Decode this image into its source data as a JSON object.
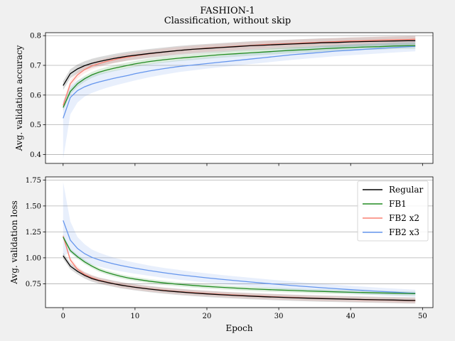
{
  "figure": {
    "title": "FASHION-1",
    "subtitle": "Classification, without skip",
    "background": "#f0f0f0"
  },
  "chart_data": [
    {
      "type": "line",
      "ylabel": "Avg. validation accuracy",
      "xlabel": "",
      "xlim": [
        -2.45,
        51.45
      ],
      "ylim": [
        0.37,
        0.81
      ],
      "xticks": [
        0,
        10,
        20,
        30,
        40,
        50
      ],
      "yticks": [
        0.4,
        0.5,
        0.6,
        0.7,
        0.8
      ],
      "ytick_labels": [
        "0.4",
        "0.5",
        "0.6",
        "0.7",
        "0.8"
      ],
      "grid": "y",
      "x": [
        0,
        1,
        2,
        3,
        4,
        5,
        6,
        7,
        8,
        9,
        10,
        12,
        14,
        16,
        18,
        20,
        22,
        24,
        26,
        28,
        30,
        32,
        34,
        36,
        38,
        40,
        42,
        44,
        46,
        48,
        49
      ],
      "series": [
        {
          "name": "Regular",
          "color": "#000000",
          "values": [
            0.632,
            0.672,
            0.688,
            0.699,
            0.707,
            0.713,
            0.718,
            0.723,
            0.727,
            0.731,
            0.734,
            0.74,
            0.745,
            0.75,
            0.754,
            0.757,
            0.76,
            0.763,
            0.766,
            0.768,
            0.77,
            0.772,
            0.774,
            0.776,
            0.777,
            0.779,
            0.78,
            0.781,
            0.782,
            0.783,
            0.783
          ],
          "band": 0.015
        },
        {
          "name": "FB1",
          "color": "#228b22",
          "values": [
            0.558,
            0.612,
            0.638,
            0.655,
            0.668,
            0.677,
            0.684,
            0.69,
            0.695,
            0.7,
            0.705,
            0.713,
            0.719,
            0.724,
            0.728,
            0.732,
            0.736,
            0.739,
            0.742,
            0.745,
            0.748,
            0.751,
            0.753,
            0.756,
            0.758,
            0.76,
            0.762,
            0.763,
            0.765,
            0.766,
            0.766
          ],
          "band": 0.01
        },
        {
          "name": "FB2 x2",
          "color": "#fa8072",
          "values": [
            0.565,
            0.638,
            0.668,
            0.686,
            0.698,
            0.706,
            0.713,
            0.719,
            0.724,
            0.728,
            0.732,
            0.739,
            0.745,
            0.75,
            0.754,
            0.758,
            0.761,
            0.764,
            0.767,
            0.77,
            0.772,
            0.774,
            0.776,
            0.778,
            0.78,
            0.782,
            0.783,
            0.785,
            0.786,
            0.787,
            0.788
          ],
          "band": 0.012
        },
        {
          "name": "FB2 x3",
          "color": "#6495ed",
          "values": [
            0.522,
            0.592,
            0.615,
            0.628,
            0.637,
            0.644,
            0.65,
            0.656,
            0.661,
            0.666,
            0.672,
            0.681,
            0.689,
            0.696,
            0.701,
            0.706,
            0.711,
            0.716,
            0.721,
            0.726,
            0.731,
            0.736,
            0.74,
            0.744,
            0.748,
            0.751,
            0.754,
            0.757,
            0.76,
            0.763,
            0.764
          ],
          "band_lower": [
            0.385,
            0.535,
            0.575,
            0.595,
            0.607,
            0.616,
            0.624,
            0.631,
            0.637,
            0.643,
            0.649,
            0.66,
            0.669,
            0.677,
            0.683,
            0.689,
            0.694,
            0.699,
            0.704,
            0.709,
            0.714,
            0.719,
            0.723,
            0.727,
            0.731,
            0.734,
            0.737,
            0.74,
            0.743,
            0.746,
            0.747
          ],
          "band_upper": [
            0.58,
            0.63,
            0.65,
            0.66,
            0.667,
            0.673,
            0.678,
            0.683,
            0.688,
            0.692,
            0.697,
            0.705,
            0.712,
            0.718,
            0.723,
            0.727,
            0.732,
            0.737,
            0.742,
            0.747,
            0.752,
            0.757,
            0.761,
            0.765,
            0.768,
            0.771,
            0.773,
            0.775,
            0.777,
            0.779,
            0.78
          ]
        }
      ]
    },
    {
      "type": "line",
      "ylabel": "Avg. validation loss",
      "xlabel": "Epoch",
      "xlim": [
        -2.45,
        51.45
      ],
      "ylim": [
        0.52,
        1.78
      ],
      "xticks": [
        0,
        10,
        20,
        30,
        40,
        50
      ],
      "xtick_labels": [
        "0",
        "10",
        "20",
        "30",
        "40",
        "50"
      ],
      "yticks": [
        0.75,
        1.0,
        1.25,
        1.5,
        1.75
      ],
      "ytick_labels": [
        "0.75",
        "1.00",
        "1.25",
        "1.50",
        "1.75"
      ],
      "grid": "y",
      "legend": "top-right",
      "x": [
        0,
        1,
        2,
        3,
        4,
        5,
        6,
        7,
        8,
        9,
        10,
        12,
        14,
        16,
        18,
        20,
        22,
        24,
        26,
        28,
        30,
        32,
        34,
        36,
        38,
        40,
        42,
        44,
        46,
        48,
        49
      ],
      "series": [
        {
          "name": "Regular",
          "color": "#000000",
          "values": [
            1.02,
            0.92,
            0.87,
            0.83,
            0.8,
            0.78,
            0.765,
            0.75,
            0.737,
            0.726,
            0.716,
            0.699,
            0.684,
            0.672,
            0.661,
            0.652,
            0.644,
            0.637,
            0.631,
            0.625,
            0.62,
            0.615,
            0.611,
            0.607,
            0.604,
            0.601,
            0.598,
            0.595,
            0.593,
            0.59,
            0.589
          ],
          "band": 0.03
        },
        {
          "name": "FB1",
          "color": "#228b22",
          "values": [
            1.2,
            1.07,
            1.01,
            0.96,
            0.92,
            0.885,
            0.86,
            0.84,
            0.822,
            0.807,
            0.795,
            0.775,
            0.758,
            0.745,
            0.734,
            0.724,
            0.716,
            0.708,
            0.701,
            0.695,
            0.69,
            0.685,
            0.68,
            0.676,
            0.672,
            0.668,
            0.665,
            0.662,
            0.659,
            0.656,
            0.655
          ],
          "band": 0.02
        },
        {
          "name": "FB2 x2",
          "color": "#fa8072",
          "values": [
            1.21,
            0.98,
            0.89,
            0.84,
            0.81,
            0.785,
            0.768,
            0.752,
            0.739,
            0.728,
            0.718,
            0.701,
            0.687,
            0.675,
            0.665,
            0.656,
            0.648,
            0.641,
            0.634,
            0.628,
            0.623,
            0.618,
            0.613,
            0.609,
            0.605,
            0.601,
            0.597,
            0.594,
            0.591,
            0.588,
            0.587
          ],
          "band": 0.025
        },
        {
          "name": "FB2 x3",
          "color": "#6495ed",
          "values": [
            1.36,
            1.17,
            1.09,
            1.04,
            1.005,
            0.98,
            0.96,
            0.942,
            0.927,
            0.913,
            0.9,
            0.877,
            0.856,
            0.838,
            0.822,
            0.807,
            0.793,
            0.78,
            0.767,
            0.755,
            0.743,
            0.732,
            0.722,
            0.712,
            0.702,
            0.693,
            0.685,
            0.677,
            0.669,
            0.661,
            0.658
          ],
          "band_lower": [
            1.02,
            1.05,
            1.0,
            0.96,
            0.935,
            0.915,
            0.898,
            0.883,
            0.87,
            0.858,
            0.847,
            0.826,
            0.807,
            0.79,
            0.775,
            0.761,
            0.748,
            0.736,
            0.724,
            0.713,
            0.702,
            0.692,
            0.682,
            0.673,
            0.664,
            0.655,
            0.647,
            0.64,
            0.633,
            0.626,
            0.623
          ],
          "band_upper": [
            1.73,
            1.35,
            1.2,
            1.13,
            1.08,
            1.05,
            1.025,
            1.003,
            0.985,
            0.968,
            0.953,
            0.926,
            0.903,
            0.884,
            0.866,
            0.85,
            0.835,
            0.821,
            0.808,
            0.795,
            0.783,
            0.771,
            0.76,
            0.75,
            0.74,
            0.73,
            0.721,
            0.712,
            0.704,
            0.696,
            0.692
          ]
        }
      ]
    }
  ]
}
